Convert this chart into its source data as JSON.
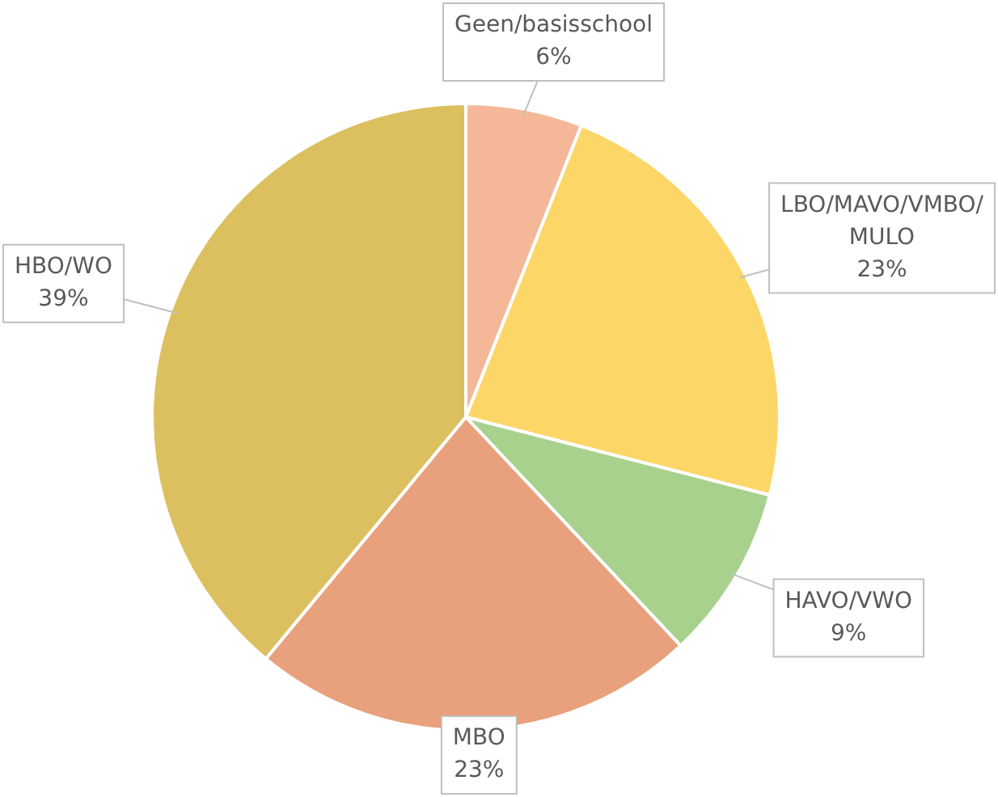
{
  "chart_data": {
    "type": "pie",
    "categories": [
      "Geen/basisschool",
      "LBO/MAVO/VMBO/MULO",
      "HAVO/VWO",
      "MBO",
      "HBO/WO"
    ],
    "values": [
      6,
      23,
      9,
      23,
      39
    ],
    "colors": [
      "#f4b898",
      "#fdd668",
      "#a9d18e",
      "#e8a17c",
      "#dcc060"
    ],
    "value_labels": [
      "6%",
      "23%",
      "9%",
      "23%",
      "39%"
    ],
    "legend": false
  }
}
